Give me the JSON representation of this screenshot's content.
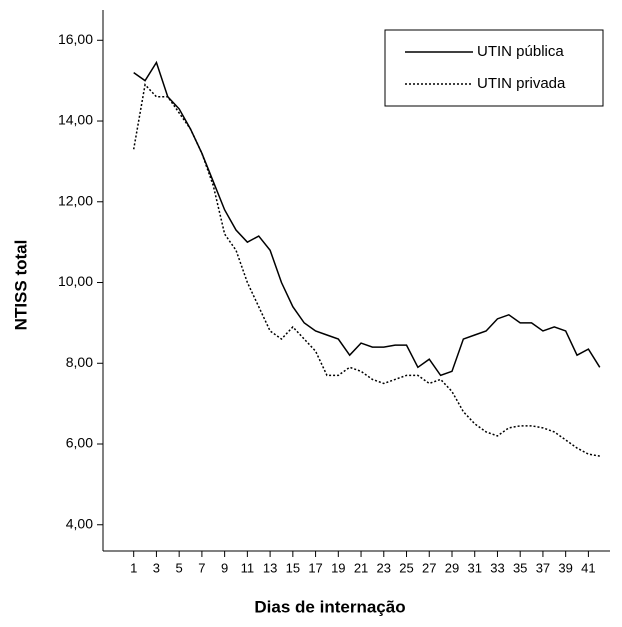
{
  "chart_data": {
    "type": "line",
    "xlabel": "Dias de internação",
    "ylabel": "NTISS total",
    "x": [
      1,
      2,
      3,
      4,
      5,
      6,
      7,
      8,
      9,
      10,
      11,
      12,
      13,
      14,
      15,
      16,
      17,
      18,
      19,
      20,
      21,
      22,
      23,
      24,
      25,
      26,
      27,
      28,
      29,
      30,
      31,
      32,
      33,
      34,
      35,
      36,
      37,
      38,
      39,
      40,
      41,
      42
    ],
    "series": [
      {
        "name": "UTIN pública",
        "color": "#000000",
        "style": "solid",
        "values": [
          15.2,
          15.0,
          15.45,
          14.6,
          14.3,
          13.8,
          13.2,
          12.5,
          11.8,
          11.3,
          11.0,
          11.15,
          10.8,
          10.0,
          9.4,
          9.0,
          8.8,
          8.7,
          8.6,
          8.2,
          8.5,
          8.4,
          8.4,
          8.45,
          8.45,
          7.9,
          8.1,
          7.7,
          7.8,
          8.6,
          8.7,
          8.8,
          9.1,
          9.2,
          9.0,
          9.0,
          8.8,
          8.9,
          8.8,
          8.2,
          8.35,
          7.9
        ]
      },
      {
        "name": "UTIN privada",
        "color": "#000000",
        "style": "dotted",
        "values": [
          13.3,
          14.9,
          14.6,
          14.6,
          14.2,
          13.8,
          13.2,
          12.4,
          11.2,
          10.8,
          10.0,
          9.4,
          8.8,
          8.6,
          8.9,
          8.6,
          8.3,
          7.7,
          7.7,
          7.9,
          7.8,
          7.6,
          7.5,
          7.6,
          7.7,
          7.7,
          7.5,
          7.6,
          7.3,
          6.8,
          6.5,
          6.3,
          6.2,
          6.4,
          6.45,
          6.45,
          6.4,
          6.3,
          6.1,
          5.9,
          5.75,
          5.7
        ]
      }
    ],
    "xlim": [
      -1.7,
      42.9
    ],
    "ylim": [
      3.35,
      16.75
    ],
    "xticks": [
      1,
      3,
      5,
      7,
      9,
      11,
      13,
      15,
      17,
      19,
      21,
      23,
      25,
      27,
      29,
      31,
      33,
      35,
      37,
      39,
      41
    ],
    "yticks": [
      {
        "value": 4,
        "label": "4,00"
      },
      {
        "value": 6,
        "label": "6,00"
      },
      {
        "value": 8,
        "label": "8,00"
      },
      {
        "value": 10,
        "label": "10,00"
      },
      {
        "value": 12,
        "label": "12,00"
      },
      {
        "value": 14,
        "label": "14,00"
      },
      {
        "value": 16,
        "label": "16,00"
      }
    ],
    "legend": "top-right"
  }
}
